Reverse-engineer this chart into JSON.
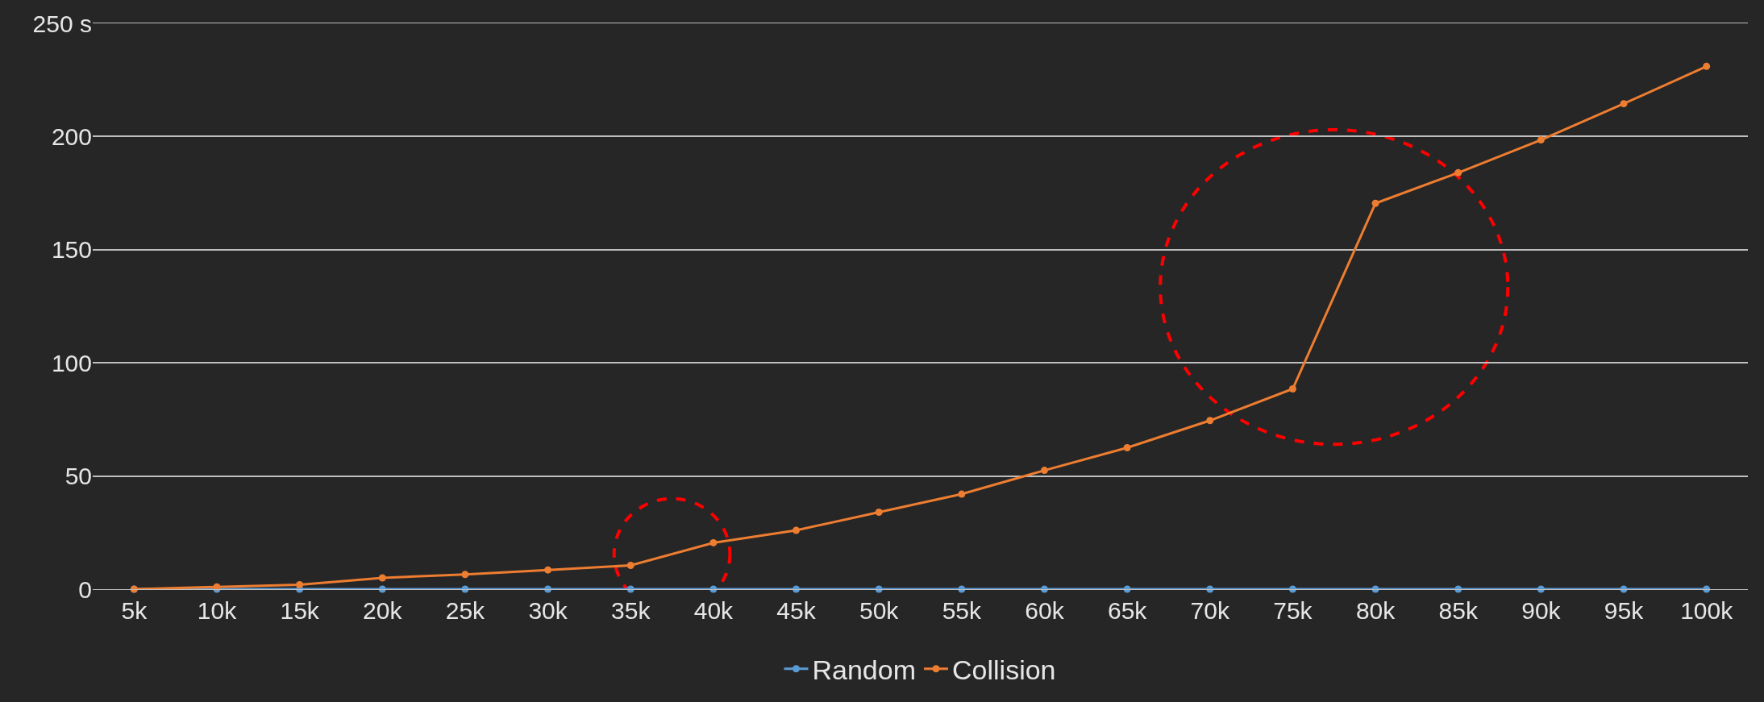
{
  "chart_data": {
    "type": "line",
    "categories": [
      "5k",
      "10k",
      "15k",
      "20k",
      "25k",
      "30k",
      "35k",
      "40k",
      "45k",
      "50k",
      "55k",
      "60k",
      "65k",
      "70k",
      "75k",
      "80k",
      "85k",
      "90k",
      "95k",
      "100k"
    ],
    "series": [
      {
        "name": "Random",
        "color": "#5b9bd5",
        "values": [
          0,
          0,
          0,
          0,
          0,
          0,
          0,
          0,
          0,
          0,
          0,
          0,
          0,
          0,
          0,
          0,
          0,
          0,
          0,
          0
        ]
      },
      {
        "name": "Collision",
        "color": "#ed7d31",
        "values": [
          0,
          1,
          2,
          5,
          6.5,
          8.5,
          10.5,
          20.5,
          26,
          34,
          42,
          52.5,
          62.5,
          74.5,
          88.5,
          170.5,
          184,
          198.5,
          214.5,
          231
        ]
      }
    ],
    "ylim": [
      0,
      250
    ],
    "yticks": [
      0,
      50,
      100,
      150,
      200,
      {
        "value": 250,
        "label": "250 s"
      }
    ],
    "grid": "y",
    "legend": "bottom",
    "marker": "circle",
    "line_style": "solid"
  }
}
